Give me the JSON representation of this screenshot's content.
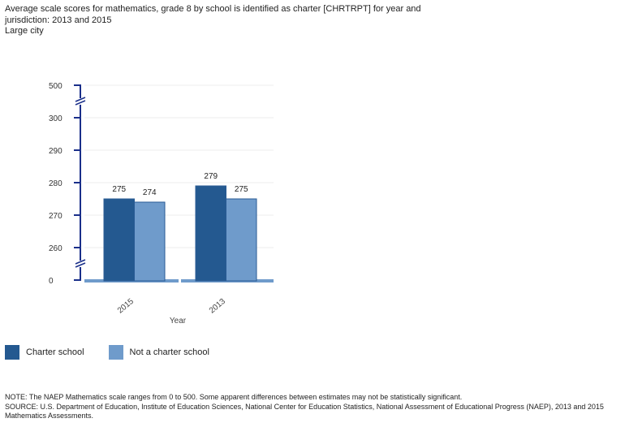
{
  "header": {
    "title": "Average scale scores for mathematics, grade 8 by school is identified as charter [CHRTRPT] for year and jurisdiction: 2013 and 2015",
    "subtitle": "Large city"
  },
  "chart_data": {
    "type": "bar",
    "categories": [
      "2015",
      "2013"
    ],
    "xlabel": "Year",
    "ylabel": "",
    "yticks": [
      "0",
      "260",
      "270",
      "280",
      "290",
      "300",
      "500"
    ],
    "axis_breaks": [
      "0-260",
      "300-500"
    ],
    "series": [
      {
        "name": "Charter school",
        "values": [
          275,
          279
        ],
        "color": "#245990"
      },
      {
        "name": "Not a charter school",
        "values": [
          274,
          275
        ],
        "color": "#6f9bcb"
      }
    ],
    "grid": true,
    "legend": "bottom-left"
  },
  "footer": {
    "note": "NOTE: The NAEP Mathematics scale ranges from 0 to 500. Some apparent differences between estimates may not be statistically significant.",
    "source": "SOURCE: U.S. Department of Education, Institute of Education Sciences, National Center for Education Statistics, National Assessment of Educational Progress (NAEP), 2013 and 2015 Mathematics Assessments."
  }
}
